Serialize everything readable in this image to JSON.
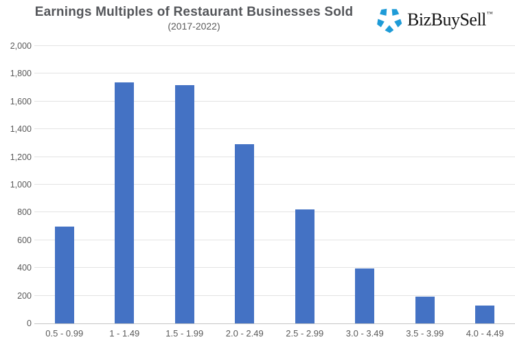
{
  "header": {
    "title": "Earnings Multiples of Restaurant Businesses Sold",
    "subtitle": "(2017-2022)"
  },
  "logo": {
    "text": "BizBuySell",
    "trademark": "™",
    "icon": "pinwheel-star-icon",
    "icon_color": "#1E9BD7",
    "text_color": "#141414"
  },
  "chart_data": {
    "type": "bar",
    "title": "Earnings Multiples of Restaurant Businesses Sold",
    "subtitle": "(2017-2022)",
    "categories": [
      "0.5 - 0.99",
      "1 - 1.49",
      "1.5 - 1.99",
      "2.0 - 2.49",
      "2.5 - 2.99",
      "3.0 - 3.49",
      "3.5 - 3.99",
      "4.0 - 4.49"
    ],
    "values": [
      700,
      1740,
      1720,
      1290,
      820,
      395,
      195,
      130
    ],
    "xlabel": "",
    "ylabel": "",
    "ylim": [
      0,
      2000
    ],
    "ytick_step": 200,
    "ytick_format": "thousands-comma",
    "grid": "horizontal",
    "legend": "none",
    "bar_color": "#4472C4",
    "gridline_color": "#E3E3E3",
    "axis_line_color": "#C4C4C4",
    "tick_label_color": "#595959"
  }
}
